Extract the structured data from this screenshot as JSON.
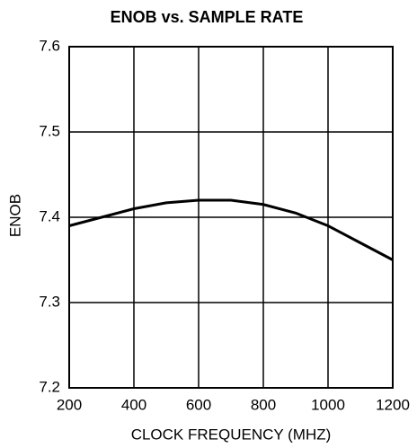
{
  "chart_data": {
    "type": "line",
    "title": "ENOB vs. SAMPLE RATE",
    "xlabel": "CLOCK FREQUENCY (MHZ)",
    "ylabel": "ENOB",
    "x": [
      200,
      300,
      400,
      500,
      600,
      700,
      800,
      900,
      1000,
      1100,
      1200
    ],
    "series": [
      {
        "name": "ENOB",
        "color": "#000000",
        "values": [
          7.39,
          7.4,
          7.41,
          7.417,
          7.42,
          7.42,
          7.415,
          7.405,
          7.39,
          7.37,
          7.35
        ]
      }
    ],
    "xlim": [
      200,
      1200
    ],
    "xticks": [
      200,
      400,
      600,
      800,
      1000,
      1200
    ],
    "ylim": [
      7.2,
      7.6
    ],
    "yticks": [
      7.2,
      7.3,
      7.4,
      7.5,
      7.6
    ],
    "grid": true
  }
}
